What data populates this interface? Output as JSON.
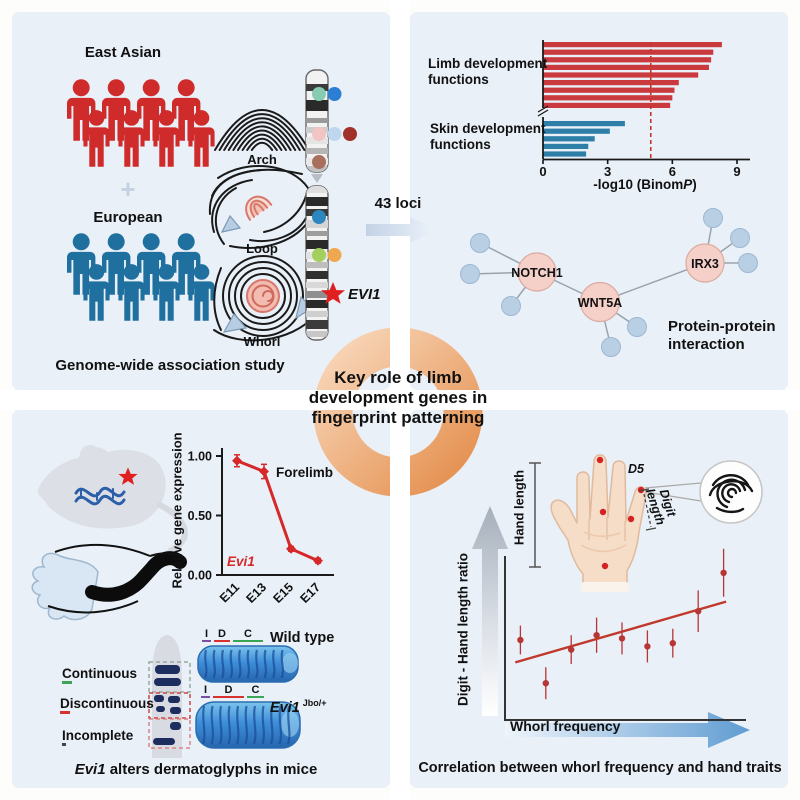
{
  "palette": {
    "panel_bg": "#e9f0f8",
    "east_asian_red": "#cf2b2b",
    "european_blue": "#1f6f9f",
    "bar_red": "#c9393e",
    "bar_blue": "#2e7fa8",
    "threshold_red": "#c0392b",
    "node_pink": "#f5d0c9",
    "node_blue": "#b9cfe4",
    "line_red": "#d62828",
    "scatter_red": "#b73535",
    "ring_orange": "#e89a5e",
    "star_red": "#e02020",
    "blob_navy": "#1d2d5e"
  },
  "center": {
    "loci_label": "43 loci",
    "headline_line1": "Key role of limb",
    "headline_line2": "development genes in",
    "headline_line3": "fingerprint patterning"
  },
  "top_left": {
    "east_asian_label": "East Asian",
    "plus_sign": "+",
    "european_label": "European",
    "arch_label": "Arch",
    "loop_label": "Loop",
    "whorl_label": "Whorl",
    "gene_label": "EVI1",
    "caption": "Genome-wide association study",
    "marker_rows": [
      {
        "y": 94,
        "colors": [
          "#86cbb2",
          "#2a7fd4"
        ]
      },
      {
        "y": 134,
        "colors": [
          "#f2c4c4",
          "#bed7ec",
          "#a03028"
        ]
      },
      {
        "y": 162,
        "colors": [
          "#a8705c"
        ]
      },
      {
        "y": 217,
        "colors": [
          "#2e86c1"
        ]
      },
      {
        "y": 255,
        "colors": [
          "#a3cf5f",
          "#f0a850"
        ]
      }
    ]
  },
  "top_right": {
    "limb_label_line1": "Limb development",
    "limb_label_line2": "functions",
    "skin_label_line1": "Skin development",
    "skin_label_line2": "functions",
    "xlabel_prefix": "-log10 (Binom",
    "xlabel_italic": "P",
    "xlabel_suffix": ")",
    "nodes": {
      "n1": "NOTCH1",
      "n2": "WNT5A",
      "n3": "IRX3"
    },
    "network_caption_line1": "Protein-protein",
    "network_caption_line2": "interaction"
  },
  "bottom_left": {
    "legend": {
      "continuous_initial": "C",
      "continuous_rest": "ontinuous",
      "discontinuous_initial": "D",
      "discontinuous_rest": "iscontinuous",
      "incomplete_initial": "I",
      "incomplete_rest": "ncomplete"
    },
    "idc": {
      "i": "I",
      "d": "D",
      "c": "C"
    },
    "wild_type_label": "Wild type",
    "mutant_gene": "Evi1",
    "mutant_sup": "Jbo/+",
    "caption_gene": "Evi1",
    "caption_rest": " alters dermatoglyphs in mice"
  },
  "bottom_right": {
    "hand_length_label": "Hand length",
    "d5_label": "D5",
    "digit_length_label": "Digit length",
    "caption": "Correlation between whorl frequency and hand traits"
  },
  "people": {
    "east_asian_count": 8,
    "european_count": 8
  },
  "chart_data": [
    {
      "id": "enrichment_bar",
      "type": "bar",
      "orientation": "horizontal",
      "xlabel": "-log10 (BinomP)",
      "xlim": [
        0,
        9
      ],
      "xticks": [
        "0",
        "3",
        "6",
        "9"
      ],
      "threshold": 5,
      "series": [
        {
          "name": "Limb development functions",
          "color": "#c9393e",
          "values": [
            8.3,
            7.9,
            7.8,
            7.7,
            7.2,
            6.3,
            6.1,
            6.0,
            5.9
          ]
        },
        {
          "name": "Skin development functions",
          "color": "#2e7fa8",
          "values": [
            3.8,
            3.1,
            2.4,
            2.1,
            2.0
          ]
        }
      ]
    },
    {
      "id": "expression_line",
      "type": "line",
      "ylabel": "Relative gene expression",
      "ylim": [
        0,
        1.05
      ],
      "yticks": [
        "1.00",
        "0.50",
        "0.00"
      ],
      "categories": [
        "E11",
        "E13",
        "E15",
        "E17"
      ],
      "values": [
        0.96,
        0.87,
        0.22,
        0.12
      ],
      "errors": [
        0.05,
        0.06,
        0.02,
        0.02
      ],
      "series_label": "Forelimb",
      "gene": "Evi1",
      "color": "#d62828"
    },
    {
      "id": "whorl_scatter",
      "type": "scatter",
      "xlabel": "Whorl frequency",
      "ylabel": "Digit - Hand length ratio",
      "x": [
        1,
        2,
        3,
        4,
        5,
        6,
        7,
        8,
        9
      ],
      "y": [
        0.5,
        0.23,
        0.44,
        0.53,
        0.51,
        0.46,
        0.48,
        0.68,
        0.92
      ],
      "yerr": [
        0.09,
        0.1,
        0.09,
        0.11,
        0.1,
        0.1,
        0.09,
        0.13,
        0.15
      ],
      "trend": {
        "x1": 0.8,
        "y1": 0.36,
        "x2": 9.1,
        "y2": 0.74
      },
      "color": "#b73535"
    }
  ]
}
